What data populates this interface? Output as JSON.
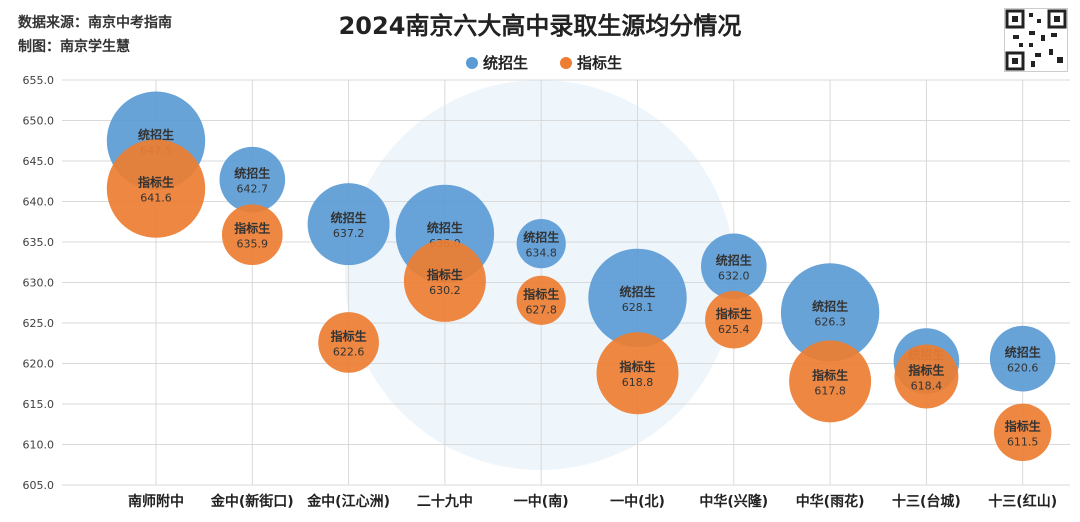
{
  "source_line": "数据来源：南京中考指南",
  "author_line": "制图：南京学生慧",
  "colors": {
    "unified": "#5B9BD5",
    "quota": "#ED7D31",
    "grid": "#D9D9D9",
    "text": "#404040"
  },
  "chart_data": {
    "type": "bubble",
    "title": "2024南京六大高中录取生源均分情况",
    "xlabel": "",
    "ylabel": "",
    "ylim": [
      605,
      655
    ],
    "yticks": [
      "605.0",
      "610.0",
      "615.0",
      "620.0",
      "625.0",
      "630.0",
      "635.0",
      "640.0",
      "645.0",
      "650.0",
      "655.0"
    ],
    "grid": true,
    "legend_position": "top-center",
    "categories": [
      "南师附中",
      "金中(新街口)",
      "金中(江心洲)",
      "二十九中",
      "一中(南)",
      "一中(北)",
      "中华(兴隆)",
      "中华(雨花)",
      "十三(台城)",
      "十三(红山)"
    ],
    "series": [
      {
        "name": "统招生",
        "color": "#5B9BD5",
        "values": [
          647.5,
          642.7,
          637.2,
          636.0,
          634.8,
          628.1,
          632.0,
          626.3,
          620.3,
          620.6
        ],
        "labels": [
          "647.5",
          "642.7",
          "637.2",
          "636.0",
          "634.8",
          "628.1",
          "632.0",
          "626.3",
          "620.3",
          "620.6"
        ],
        "sizes": [
          6,
          4,
          5,
          6,
          3,
          6,
          4,
          6,
          4,
          4
        ]
      },
      {
        "name": "指标生",
        "color": "#ED7D31",
        "values": [
          641.6,
          635.9,
          622.6,
          630.2,
          627.8,
          618.8,
          625.4,
          617.8,
          618.4,
          611.5
        ],
        "labels": [
          "641.6",
          "635.9",
          "622.6",
          "630.2",
          "627.8",
          "618.8",
          "625.4",
          "617.8",
          "618.4",
          "611.5"
        ],
        "sizes": [
          6,
          3.7,
          3.7,
          5,
          3,
          5,
          3.5,
          5,
          3.9,
          3.5
        ]
      }
    ]
  }
}
